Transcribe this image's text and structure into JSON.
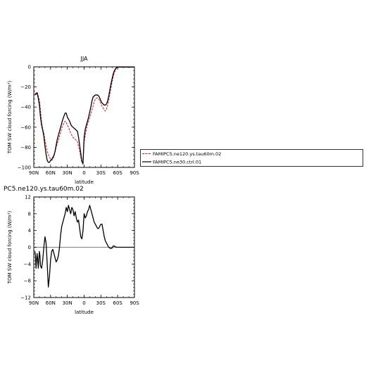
{
  "chart_data": [
    {
      "type": "line",
      "title": "JJA",
      "xlabel": "latitude",
      "ylabel": "TOM SW cloud forcing (W/m²)",
      "xlim": [
        90,
        -90
      ],
      "ylim": [
        -100,
        0
      ],
      "x_ticks": [
        90,
        60,
        30,
        0,
        -30,
        -60,
        -90
      ],
      "x_tick_labels": [
        "90N",
        "60N",
        "30N",
        "0",
        "30S",
        "60S",
        "90S"
      ],
      "y_ticks": [
        0,
        -20,
        -40,
        -60,
        -80,
        -100
      ],
      "y_tick_labels": [
        "0",
        "−20",
        "−40",
        "−60",
        "−80",
        "−100"
      ],
      "legend_position": "right",
      "series": [
        {
          "name": "FAMIPC5.ne120.ys.tau60m.02",
          "color": "#e8101e",
          "dash": "dashed",
          "x": [
            88,
            86,
            84,
            82,
            80,
            78,
            76,
            74,
            72,
            70,
            68,
            66,
            64,
            62,
            60,
            58,
            56,
            54,
            52,
            50,
            48,
            46,
            44,
            42,
            40,
            38,
            36,
            34,
            32,
            30,
            28,
            26,
            24,
            22,
            20,
            18,
            16,
            14,
            12,
            10,
            8,
            6,
            4,
            2,
            0,
            -2,
            -4,
            -6,
            -8,
            -10,
            -12,
            -14,
            -16,
            -18,
            -20,
            -22,
            -24,
            -26,
            -28,
            -30,
            -32,
            -34,
            -36,
            -38,
            -40,
            -42,
            -44,
            -46,
            -48,
            -50,
            -52,
            -54,
            -56,
            -58,
            -60,
            -62,
            -64,
            -66,
            -68,
            -70,
            -75,
            -80,
            -85,
            -89
          ],
          "y": [
            -27,
            -26,
            -25,
            -29,
            -33,
            -43,
            -55,
            -62,
            -66,
            -73,
            -79,
            -84,
            -87,
            -90,
            -92,
            -93,
            -92,
            -89,
            -85,
            -80,
            -76,
            -73,
            -69,
            -65,
            -61,
            -58,
            -56,
            -54,
            -55,
            -58,
            -60,
            -63,
            -66,
            -68,
            -70,
            -71,
            -72,
            -73,
            -74,
            -79,
            -84,
            -90,
            -95,
            -97,
            -75,
            -68,
            -62,
            -57,
            -54,
            -50,
            -47,
            -43,
            -39,
            -35,
            -32,
            -31,
            -31,
            -32,
            -34,
            -37,
            -39,
            -41,
            -43,
            -44,
            -42,
            -38,
            -33,
            -27,
            -21,
            -15,
            -10,
            -6,
            -3,
            -1,
            -0.5,
            -0.3,
            -0.2,
            -0.2,
            -0.2,
            -0.2,
            -0.2,
            -0.2,
            -0.2,
            -0.2
          ]
        },
        {
          "name": "FAMIPC5.ne30.ctrl.01",
          "color": "#000000",
          "dash": "solid",
          "x": [
            88,
            86,
            84,
            82,
            80,
            78,
            76,
            74,
            72,
            70,
            68,
            66,
            64,
            62,
            60,
            58,
            56,
            54,
            52,
            50,
            48,
            46,
            44,
            42,
            40,
            38,
            36,
            34,
            32,
            30,
            28,
            26,
            24,
            22,
            20,
            18,
            16,
            14,
            12,
            10,
            8,
            6,
            4,
            2,
            0,
            -2,
            -4,
            -6,
            -8,
            -10,
            -12,
            -14,
            -16,
            -18,
            -20,
            -22,
            -24,
            -26,
            -28,
            -30,
            -32,
            -34,
            -36,
            -38,
            -40,
            -42,
            -44,
            -46,
            -48,
            -50,
            -52,
            -54,
            -56,
            -58,
            -60,
            -62,
            -64,
            -66,
            -68,
            -70,
            -75,
            -80,
            -85,
            -89
          ],
          "y": [
            -28,
            -27,
            -26,
            -31,
            -38,
            -50,
            -58,
            -63,
            -69,
            -79,
            -87,
            -93,
            -95,
            -95,
            -93,
            -92,
            -90,
            -88,
            -84,
            -78,
            -72,
            -68,
            -64,
            -60,
            -56,
            -52,
            -49,
            -46,
            -46,
            -50,
            -52,
            -54,
            -57,
            -59,
            -60,
            -61,
            -62,
            -63,
            -64,
            -70,
            -78,
            -86,
            -94,
            -96,
            -70,
            -62,
            -58,
            -54,
            -50,
            -45,
            -40,
            -34,
            -30,
            -29,
            -28,
            -28,
            -28,
            -29,
            -31,
            -34,
            -36,
            -37,
            -38,
            -38,
            -37,
            -34,
            -29,
            -23,
            -17,
            -12,
            -7,
            -4,
            -2,
            -0.8,
            -0.3,
            -0.2,
            -0.2,
            -0.2,
            -0.2,
            -0.2,
            -0.2,
            -0.2,
            -0.2,
            -0.2
          ]
        }
      ]
    },
    {
      "type": "line",
      "title": "PC5.ne120.ys.tau60m.02",
      "xlabel": "latitude",
      "ylabel": "TOM SW cloud forcing (W/m²)",
      "xlim": [
        90,
        -90
      ],
      "ylim": [
        -12,
        12
      ],
      "x_ticks": [
        90,
        60,
        30,
        0,
        -30,
        -60,
        -90
      ],
      "x_tick_labels": [
        "90N",
        "60N",
        "30N",
        "0",
        "30S",
        "60S",
        "90S"
      ],
      "y_ticks": [
        12,
        8,
        4,
        0,
        -4,
        -8,
        -12
      ],
      "y_tick_labels": [
        "12",
        "8",
        "4",
        "0",
        "−4",
        "−8",
        "−12"
      ],
      "series": [
        {
          "color": "#000000",
          "dash": "solid",
          "x": [
            88,
            87,
            86,
            85,
            84,
            83,
            82,
            81,
            80,
            79,
            78,
            76,
            74,
            72,
            70,
            68,
            66,
            64,
            62,
            60,
            58,
            56,
            54,
            52,
            50,
            48,
            46,
            44,
            42,
            40,
            38,
            36,
            34,
            32,
            30,
            28,
            26,
            24,
            22,
            20,
            18,
            16,
            14,
            12,
            10,
            8,
            6,
            4,
            2,
            0,
            -2,
            -4,
            -6,
            -8,
            -10,
            -12,
            -14,
            -16,
            -18,
            -20,
            -22,
            -24,
            -26,
            -28,
            -30,
            -32,
            -34,
            -36,
            -38,
            -40,
            -42,
            -44,
            -46,
            -48,
            -50,
            -52,
            -54,
            -56,
            -58,
            -60,
            -62,
            -64,
            -66,
            -70,
            -75,
            -80,
            -85,
            -89
          ],
          "y": [
            -1,
            -2,
            -5,
            -3,
            -1.5,
            -3,
            -5,
            -3,
            -1,
            -2,
            -4.5,
            -5,
            -3,
            0,
            2.5,
            1,
            -4,
            -9.5,
            -7,
            -3,
            -1,
            -0.5,
            -1.5,
            -2.5,
            -3.5,
            -3,
            -2,
            0,
            3,
            5,
            6,
            7,
            8,
            9.5,
            8.5,
            10,
            9,
            8,
            9.5,
            9,
            7.5,
            8.5,
            7,
            6,
            6.5,
            4.5,
            2.5,
            2,
            4,
            8,
            7,
            7.5,
            8.5,
            9,
            10,
            9,
            8,
            7,
            6,
            5.5,
            5,
            4.5,
            4.5,
            5,
            5.5,
            5.5,
            4,
            2.5,
            1.5,
            1,
            0.5,
            0,
            -0.2,
            -0.3,
            -0.2,
            0.3,
            0.3,
            0.1,
            0,
            0,
            0,
            0,
            0,
            0,
            0,
            0,
            0,
            0
          ]
        }
      ]
    }
  ]
}
